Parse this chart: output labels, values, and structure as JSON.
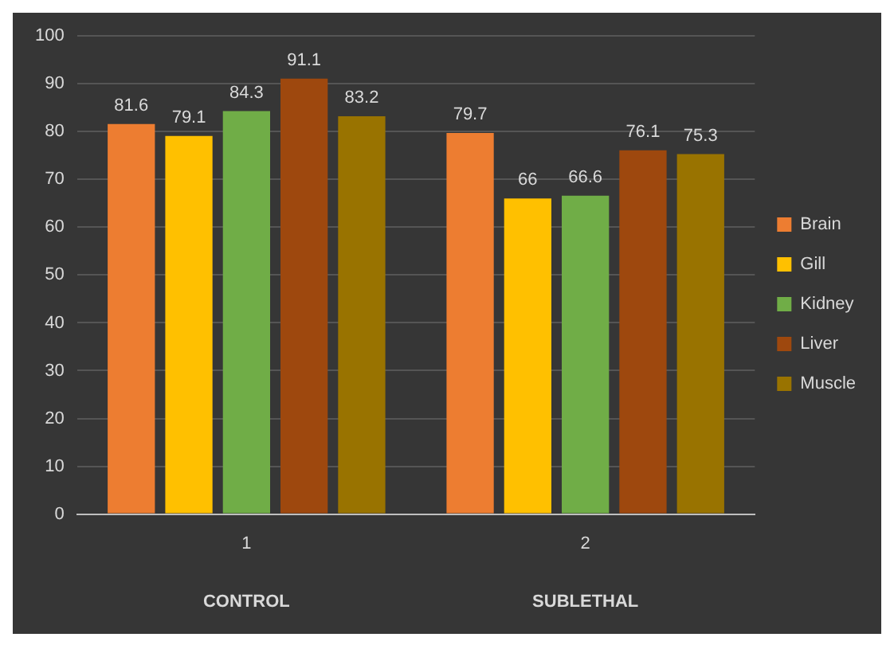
{
  "chart_data": {
    "type": "bar",
    "categories": [
      "1",
      "2"
    ],
    "series": [
      {
        "name": "Brain",
        "color": "#ed7d31",
        "values": [
          81.6,
          79.7
        ]
      },
      {
        "name": "Gill",
        "color": "#ffc000",
        "values": [
          79.1,
          66
        ]
      },
      {
        "name": "Kidney",
        "color": "#70ad47",
        "values": [
          84.3,
          66.6
        ]
      },
      {
        "name": "Liver",
        "color": "#9e480e",
        "values": [
          91.1,
          76.1
        ]
      },
      {
        "name": "Muscle",
        "color": "#997300",
        "values": [
          83.2,
          75.3
        ]
      }
    ],
    "ylim": [
      0,
      100
    ],
    "yticks": [
      0,
      10,
      20,
      30,
      40,
      50,
      60,
      70,
      80,
      90,
      100
    ],
    "grid": "y",
    "legend": "right",
    "data_labels": true,
    "annotations": [
      "CONTROL",
      "SUBLETHAL"
    ]
  }
}
